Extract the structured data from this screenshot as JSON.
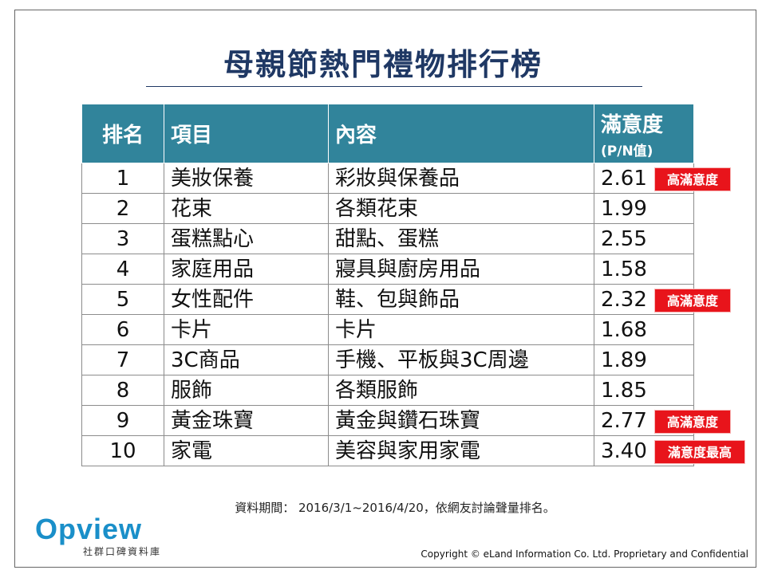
{
  "title": "母親節熱門禮物排行榜",
  "table": {
    "headers": {
      "rank": "排名",
      "item": "項目",
      "content": "內容",
      "score": "滿意度",
      "score_unit": "(P/N值)"
    },
    "rows": [
      {
        "rank": "1",
        "item": "美妝保養",
        "content": "彩妝與保養品",
        "score": "2.61",
        "badge": "高滿意度"
      },
      {
        "rank": "2",
        "item": "花束",
        "content": "各類花束",
        "score": "1.99"
      },
      {
        "rank": "3",
        "item": "蛋糕點心",
        "content": "甜點、蛋糕",
        "score": "2.55"
      },
      {
        "rank": "4",
        "item": "家庭用品",
        "content": "寢具與廚房用品",
        "score": "1.58"
      },
      {
        "rank": "5",
        "item": "女性配件",
        "content": "鞋、包與飾品",
        "score": "2.32",
        "badge": "高滿意度"
      },
      {
        "rank": "6",
        "item": "卡片",
        "content": "卡片",
        "score": "1.68"
      },
      {
        "rank": "7",
        "item": "3C商品",
        "content": "手機、平板與3C周邊",
        "score": "1.89"
      },
      {
        "rank": "8",
        "item": "服飾",
        "content": "各類服飾",
        "score": "1.85"
      },
      {
        "rank": "9",
        "item": "黃金珠寶",
        "content": "黃金與鑽石珠寶",
        "score": "2.77",
        "badge": "高滿意度"
      },
      {
        "rank": "10",
        "item": "家電",
        "content": "美容與家用家電",
        "score": "3.40",
        "badge": "滿意度最高"
      }
    ]
  },
  "note": "資料期間： 2016/3/1~2016/4/20，依網友討論聲量排名。",
  "logo": {
    "word": "Opview",
    "subtitle": "社群口碑資料庫"
  },
  "copyright": "Copyright © eLand Information Co. Ltd. Proprietary and Confidential",
  "colors": {
    "header_bg": "#31849b",
    "title": "#1f3864",
    "badge": "#e8141b",
    "logo": "#1a8fc9"
  }
}
